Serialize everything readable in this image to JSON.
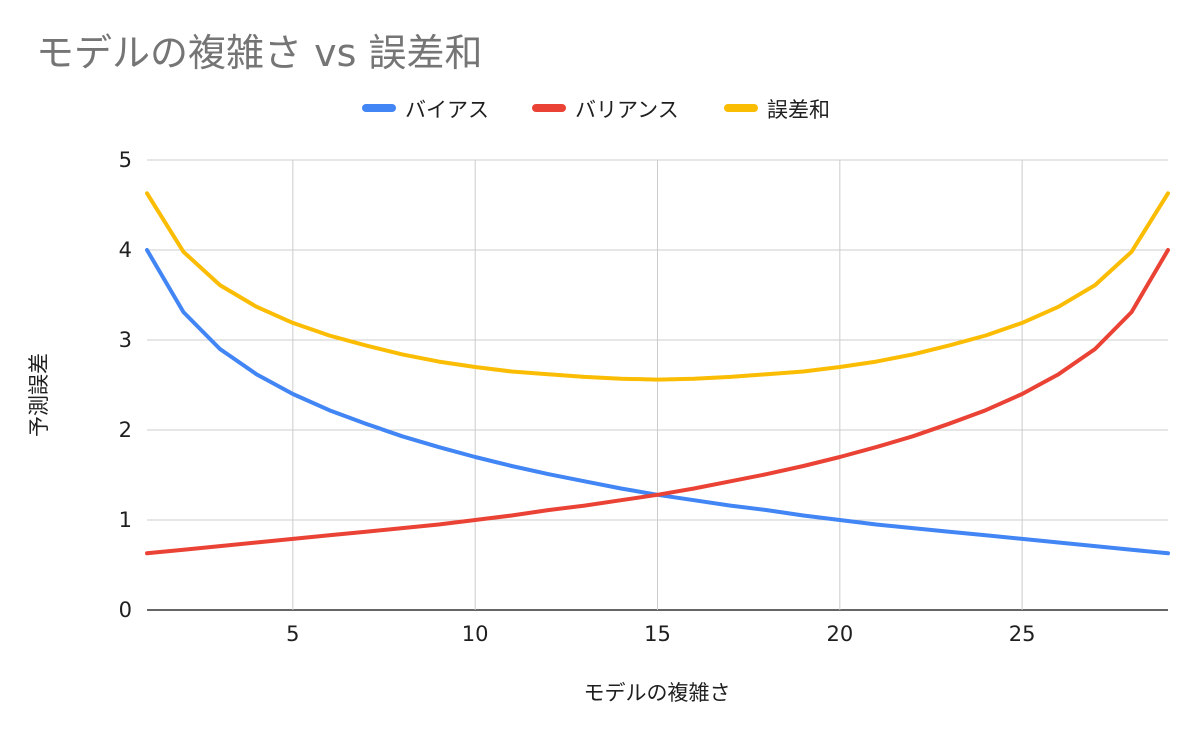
{
  "chart_data": {
    "type": "line",
    "title": "モデルの複雑さ vs 誤差和",
    "xlabel": "モデルの複雑さ",
    "ylabel": "予測誤差",
    "legend_position": "top",
    "grid": true,
    "xlim": [
      1,
      29
    ],
    "ylim": [
      0,
      5
    ],
    "x_ticks": [
      5,
      10,
      15,
      20,
      25
    ],
    "y_ticks": [
      0,
      1,
      2,
      3,
      4,
      5
    ],
    "x": [
      1,
      2,
      3,
      4,
      5,
      6,
      7,
      8,
      9,
      10,
      11,
      12,
      13,
      14,
      15,
      16,
      17,
      18,
      19,
      20,
      21,
      22,
      23,
      24,
      25,
      26,
      27,
      28,
      29
    ],
    "series": [
      {
        "name": "バイアス",
        "color": "#4285f4",
        "values": [
          4.0,
          3.31,
          2.9,
          2.62,
          2.4,
          2.22,
          2.07,
          1.93,
          1.81,
          1.7,
          1.6,
          1.51,
          1.43,
          1.35,
          1.28,
          1.22,
          1.16,
          1.11,
          1.05,
          1.0,
          0.95,
          0.91,
          0.87,
          0.83,
          0.79,
          0.75,
          0.71,
          0.67,
          0.63
        ]
      },
      {
        "name": "バリアンス",
        "color": "#ea4335",
        "values": [
          0.63,
          0.67,
          0.71,
          0.75,
          0.79,
          0.83,
          0.87,
          0.91,
          0.95,
          1.0,
          1.05,
          1.11,
          1.16,
          1.22,
          1.28,
          1.35,
          1.43,
          1.51,
          1.6,
          1.7,
          1.81,
          1.93,
          2.07,
          2.22,
          2.4,
          2.62,
          2.9,
          3.31,
          4.0
        ]
      },
      {
        "name": "誤差和",
        "color": "#fbbc04",
        "values": [
          4.63,
          3.98,
          3.61,
          3.37,
          3.19,
          3.05,
          2.94,
          2.84,
          2.76,
          2.7,
          2.65,
          2.62,
          2.59,
          2.57,
          2.56,
          2.57,
          2.59,
          2.62,
          2.65,
          2.7,
          2.76,
          2.84,
          2.94,
          3.05,
          3.19,
          3.37,
          3.61,
          3.98,
          4.63
        ]
      }
    ]
  }
}
